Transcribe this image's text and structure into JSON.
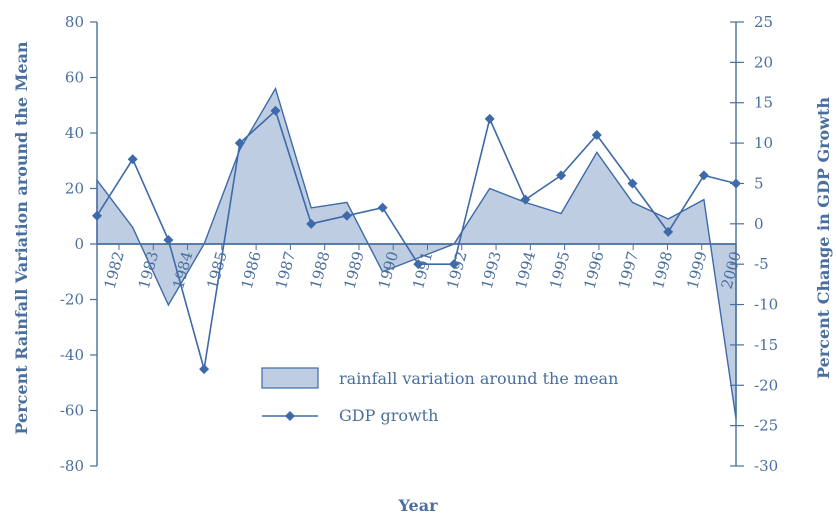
{
  "chart_data": {
    "type": "area+line",
    "xlabel": "Year",
    "ylabel_left": "Percent Rainfall Variation around the Mean",
    "ylabel_right": "Percent Change in GDP Growth",
    "ylim_left": [
      -80,
      80
    ],
    "ylim_right": [
      -30,
      25
    ],
    "yticks_left": [
      "80",
      "60",
      "40",
      "20",
      "0",
      "-20",
      "-40",
      "-60",
      "-80"
    ],
    "yticks_right": [
      "25",
      "20",
      "15",
      "10",
      "5",
      "0",
      "-5",
      "-10",
      "-15",
      "-20",
      "-25",
      "-30"
    ],
    "categories": [
      "1982",
      "1983",
      "1984",
      "1985",
      "1986",
      "1987",
      "1988",
      "1989",
      "1990",
      "1991",
      "1992",
      "1993",
      "1994",
      "1995",
      "1996",
      "1997",
      "1998",
      "1999",
      "2000"
    ],
    "legend_position": "bottom-center",
    "grid": false,
    "colors": {
      "axis": "#4a6f9e",
      "line": "#3d6aa8",
      "fill": "#bfcde3"
    },
    "series": [
      {
        "name": "rainfall variation around the mean",
        "axis": "left",
        "style": "area",
        "x": [
          1981.3,
          1982.3,
          1983.3,
          1984.3,
          1985.3,
          1986.3,
          1987.3,
          1988.3,
          1989.3,
          1990.3,
          1991.3,
          1992.3,
          1993.3,
          1994.3,
          1995.3,
          1996.3,
          1997.3,
          1998.3,
          1999.2
        ],
        "values": [
          23,
          6,
          -22,
          0,
          34,
          56,
          13,
          15,
          -10,
          -5,
          0,
          20,
          15,
          11,
          33,
          15,
          9,
          16,
          -63
        ]
      },
      {
        "name": "GDP growth",
        "axis": "right",
        "style": "line-marker",
        "x": [
          1981.3,
          1982.3,
          1983.3,
          1984.3,
          1985.3,
          1986.3,
          1987.3,
          1988.3,
          1989.3,
          1990.3,
          1991.3,
          1992.3,
          1993.3,
          1994.3,
          1995.3,
          1996.3,
          1997.3,
          1998.3,
          1999.2
        ],
        "values": [
          1,
          8,
          -2,
          -18,
          10,
          14,
          0,
          1,
          2,
          -5,
          -5,
          13,
          3,
          6,
          11,
          5,
          -1,
          6,
          5
        ]
      }
    ]
  }
}
